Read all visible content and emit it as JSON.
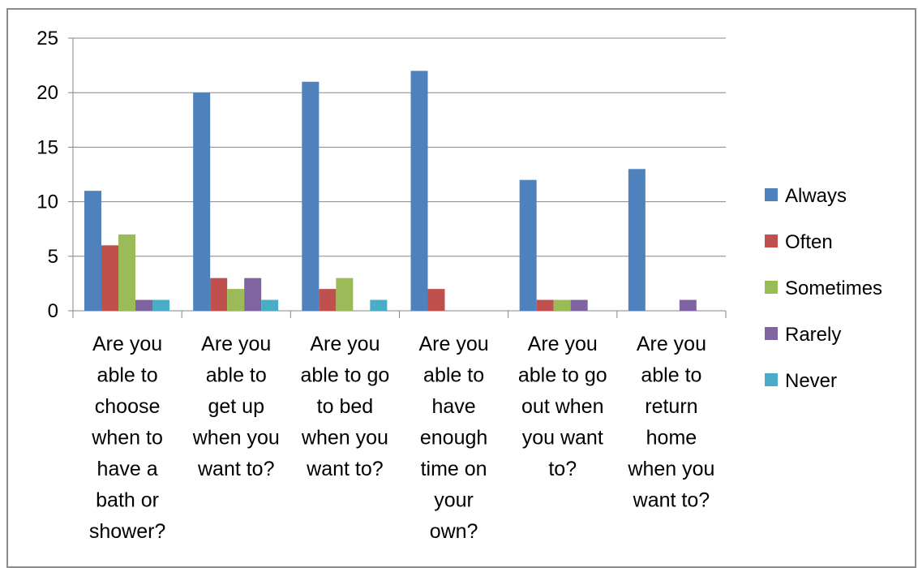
{
  "chart_data": {
    "type": "bar",
    "categories": [
      [
        "Are you",
        "able to",
        "choose",
        "when to",
        "have a",
        "bath or",
        "shower?"
      ],
      [
        "Are you",
        "able to",
        "get up",
        "when you",
        "want to?"
      ],
      [
        "Are you",
        "able to go",
        "to bed",
        "when you",
        "want to?"
      ],
      [
        "Are you",
        "able to",
        "have",
        "enough",
        "time on",
        "your",
        "own?"
      ],
      [
        "Are you",
        "able to go",
        "out when",
        "you want",
        "to?"
      ],
      [
        "Are you",
        "able to",
        "return",
        "home",
        "when you",
        "want to?"
      ]
    ],
    "series": [
      {
        "name": "Always",
        "color": "#4f81bd",
        "values": [
          11,
          20,
          21,
          22,
          12,
          13
        ]
      },
      {
        "name": "Often",
        "color": "#c0504d",
        "values": [
          6,
          3,
          2,
          2,
          1,
          0
        ]
      },
      {
        "name": "Sometimes",
        "color": "#9bbb59",
        "values": [
          7,
          2,
          3,
          0,
          1,
          0
        ]
      },
      {
        "name": "Rarely",
        "color": "#8064a2",
        "values": [
          1,
          3,
          0,
          0,
          1,
          1
        ]
      },
      {
        "name": "Never",
        "color": "#4bacc6",
        "values": [
          1,
          1,
          1,
          0,
          0,
          0
        ]
      }
    ],
    "yticks": [
      "0",
      "5",
      "10",
      "15",
      "20",
      "25"
    ],
    "ylim": [
      0,
      25
    ],
    "grid": true,
    "legend_position": "right",
    "title": "",
    "xlabel": "",
    "ylabel": ""
  }
}
